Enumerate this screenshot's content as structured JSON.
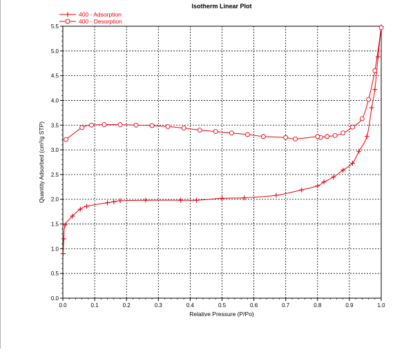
{
  "chart_data": {
    "type": "line",
    "title": "Isotherm Linear Plot",
    "xlabel": "Relative Pressure (P/Po)",
    "ylabel": "Quantity Adsorbed (cm³/g STP)",
    "xlim": [
      0.0,
      1.0
    ],
    "ylim": [
      0.0,
      5.5
    ],
    "x_ticks": [
      "0.0",
      "0.1",
      "0.2",
      "0.3",
      "0.4",
      "0.5",
      "0.6",
      "0.7",
      "0.8",
      "0.9",
      "1.0"
    ],
    "y_ticks": [
      "0.0",
      "0.5",
      "1.0",
      "1.5",
      "2.0",
      "2.5",
      "3.0",
      "3.5",
      "4.0",
      "4.5",
      "5.0",
      "5.5"
    ],
    "grid": true,
    "legend_position": "top-left",
    "series": [
      {
        "name": "400 - Adsorption",
        "color": "#e8000d",
        "marker": "plus",
        "x": [
          0.001,
          0.003,
          0.007,
          0.03,
          0.055,
          0.075,
          0.14,
          0.16,
          0.18,
          0.26,
          0.37,
          0.42,
          0.5,
          0.57,
          0.67,
          0.75,
          0.8,
          0.82,
          0.85,
          0.88,
          0.91,
          0.93,
          0.955,
          0.97,
          0.98,
          0.99,
          1.0
        ],
        "y": [
          0.9,
          1.2,
          1.48,
          1.66,
          1.8,
          1.86,
          1.93,
          1.95,
          1.97,
          1.98,
          1.98,
          1.98,
          2.02,
          2.03,
          2.08,
          2.19,
          2.27,
          2.35,
          2.45,
          2.59,
          2.73,
          2.97,
          3.27,
          3.85,
          4.22,
          4.88,
          5.49
        ]
      },
      {
        "name": "400 - Desorption",
        "color": "#e8000d",
        "marker": "circle",
        "x": [
          1.0,
          0.98,
          0.96,
          0.94,
          0.91,
          0.88,
          0.855,
          0.83,
          0.81,
          0.8,
          0.73,
          0.7,
          0.63,
          0.58,
          0.53,
          0.48,
          0.43,
          0.38,
          0.33,
          0.28,
          0.23,
          0.18,
          0.13,
          0.09,
          0.06,
          0.01
        ],
        "y": [
          5.47,
          4.6,
          4.02,
          3.63,
          3.46,
          3.34,
          3.29,
          3.27,
          3.25,
          3.27,
          3.22,
          3.25,
          3.27,
          3.31,
          3.34,
          3.37,
          3.4,
          3.44,
          3.47,
          3.49,
          3.5,
          3.51,
          3.51,
          3.5,
          3.45,
          3.21
        ]
      }
    ]
  }
}
